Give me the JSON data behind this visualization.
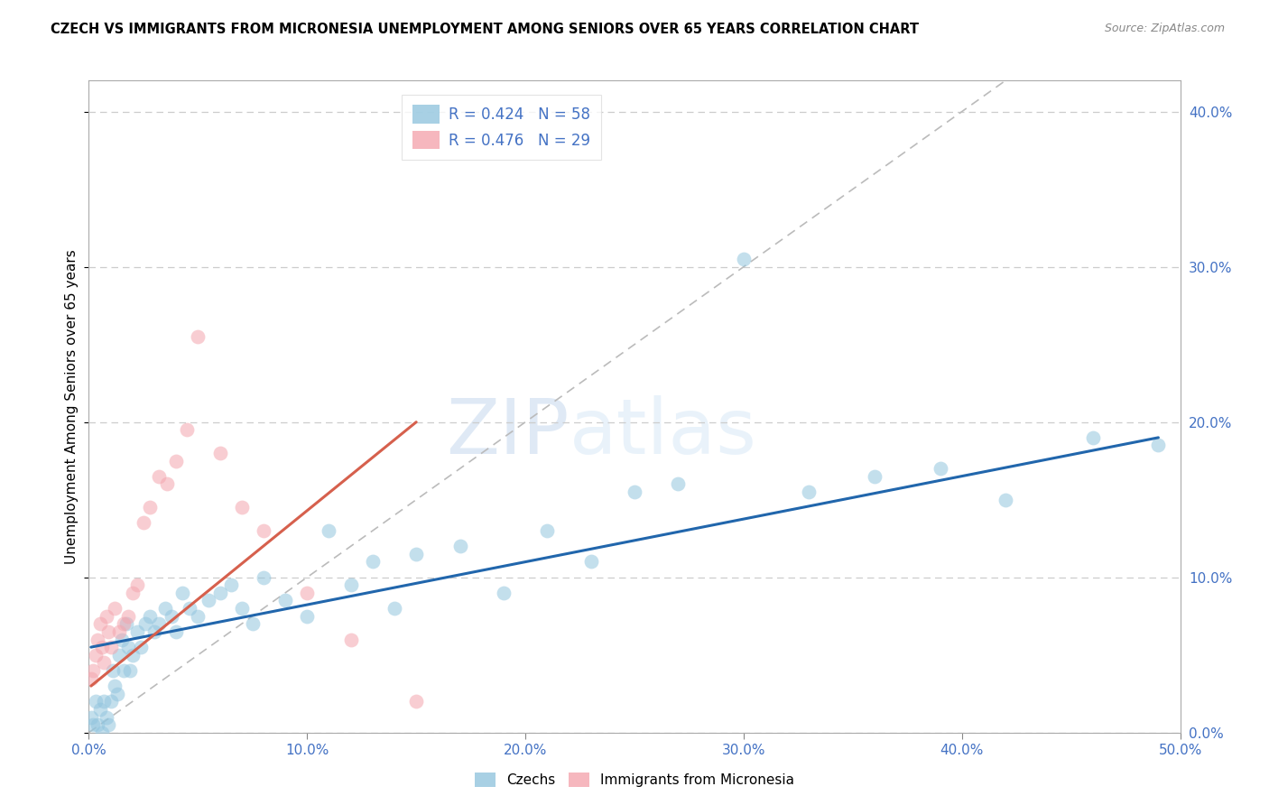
{
  "title": "CZECH VS IMMIGRANTS FROM MICRONESIA UNEMPLOYMENT AMONG SENIORS OVER 65 YEARS CORRELATION CHART",
  "source": "Source: ZipAtlas.com",
  "ylabel_label": "Unemployment Among Seniors over 65 years",
  "watermark_zip": "ZIP",
  "watermark_atlas": "atlas",
  "xlim": [
    0.0,
    0.5
  ],
  "ylim": [
    0.0,
    0.42
  ],
  "xticks": [
    0.0,
    0.1,
    0.2,
    0.3,
    0.4,
    0.5
  ],
  "yticks": [
    0.0,
    0.1,
    0.2,
    0.3,
    0.4
  ],
  "xtick_labels": [
    "0.0%",
    "10.0%",
    "20.0%",
    "30.0%",
    "40.0%",
    "50.0%"
  ],
  "ytick_labels": [
    "0.0%",
    "10.0%",
    "20.0%",
    "30.0%",
    "40.0%"
  ],
  "czechs_R": 0.424,
  "czechs_N": 58,
  "micronesia_R": 0.476,
  "micronesia_N": 29,
  "czechs_color": "#92c5de",
  "micronesia_color": "#f4a5ae",
  "trend_czechs_color": "#2166ac",
  "trend_micronesia_color": "#d6604d",
  "diagonal_color": "#bbbbbb",
  "czechs_x": [
    0.001,
    0.002,
    0.003,
    0.004,
    0.005,
    0.006,
    0.007,
    0.008,
    0.009,
    0.01,
    0.011,
    0.012,
    0.013,
    0.014,
    0.015,
    0.016,
    0.017,
    0.018,
    0.019,
    0.02,
    0.022,
    0.024,
    0.026,
    0.028,
    0.03,
    0.032,
    0.035,
    0.038,
    0.04,
    0.043,
    0.046,
    0.05,
    0.055,
    0.06,
    0.065,
    0.07,
    0.075,
    0.08,
    0.09,
    0.1,
    0.11,
    0.12,
    0.13,
    0.14,
    0.15,
    0.17,
    0.19,
    0.21,
    0.23,
    0.25,
    0.27,
    0.3,
    0.33,
    0.36,
    0.39,
    0.42,
    0.46,
    0.49
  ],
  "czechs_y": [
    0.01,
    0.005,
    0.02,
    0.005,
    0.015,
    0.0,
    0.02,
    0.01,
    0.005,
    0.02,
    0.04,
    0.03,
    0.025,
    0.05,
    0.06,
    0.04,
    0.07,
    0.055,
    0.04,
    0.05,
    0.065,
    0.055,
    0.07,
    0.075,
    0.065,
    0.07,
    0.08,
    0.075,
    0.065,
    0.09,
    0.08,
    0.075,
    0.085,
    0.09,
    0.095,
    0.08,
    0.07,
    0.1,
    0.085,
    0.075,
    0.13,
    0.095,
    0.11,
    0.08,
    0.115,
    0.12,
    0.09,
    0.13,
    0.11,
    0.155,
    0.16,
    0.305,
    0.155,
    0.165,
    0.17,
    0.15,
    0.19,
    0.185
  ],
  "micronesia_x": [
    0.001,
    0.002,
    0.003,
    0.004,
    0.005,
    0.006,
    0.007,
    0.008,
    0.009,
    0.01,
    0.012,
    0.014,
    0.016,
    0.018,
    0.02,
    0.022,
    0.025,
    0.028,
    0.032,
    0.036,
    0.04,
    0.045,
    0.05,
    0.06,
    0.07,
    0.08,
    0.1,
    0.12,
    0.15
  ],
  "micronesia_y": [
    0.035,
    0.04,
    0.05,
    0.06,
    0.07,
    0.055,
    0.045,
    0.075,
    0.065,
    0.055,
    0.08,
    0.065,
    0.07,
    0.075,
    0.09,
    0.095,
    0.135,
    0.145,
    0.165,
    0.16,
    0.175,
    0.195,
    0.255,
    0.18,
    0.145,
    0.13,
    0.09,
    0.06,
    0.02
  ],
  "czechs_trend_x": [
    0.001,
    0.49
  ],
  "czechs_trend_y": [
    0.055,
    0.19
  ],
  "micronesia_trend_x": [
    0.001,
    0.15
  ],
  "micronesia_trend_y": [
    0.03,
    0.2
  ]
}
